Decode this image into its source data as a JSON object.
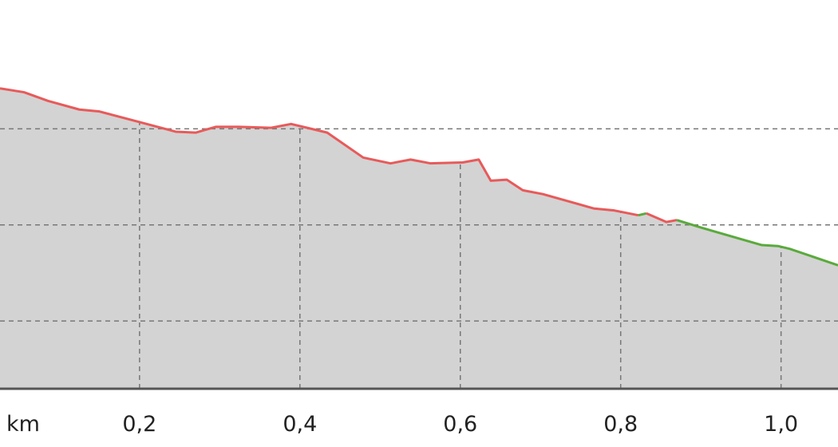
{
  "chart_data": {
    "type": "area",
    "xlabel": "km",
    "ylabel": "",
    "title": "",
    "xlim": [
      0.026,
      1.071
    ],
    "ylim": [
      0.295,
      4.34
    ],
    "grid": true,
    "x_ticks": [
      {
        "value": 0.2,
        "label": "0,2"
      },
      {
        "value": 0.4,
        "label": "0,4"
      },
      {
        "value": 0.6,
        "label": "0,6"
      },
      {
        "value": 0.8,
        "label": "0,8"
      },
      {
        "value": 1.0,
        "label": "1,0"
      }
    ],
    "y_gridlines": [
      1,
      2,
      3
    ],
    "series": [
      {
        "x": [
          0.026,
          0.056,
          0.086,
          0.125,
          0.15,
          0.2,
          0.245,
          0.27,
          0.295,
          0.324,
          0.364,
          0.389,
          0.434,
          0.479,
          0.513,
          0.538,
          0.563,
          0.603,
          0.623,
          0.638,
          0.658,
          0.678,
          0.703,
          0.767,
          0.792,
          0.822,
          0.832,
          0.857,
          0.87,
          0.901,
          0.976,
          0.996,
          1.011,
          1.071
        ],
        "y": [
          3.42,
          3.38,
          3.29,
          3.2,
          3.18,
          3.07,
          2.97,
          2.96,
          3.02,
          3.02,
          3.01,
          3.05,
          2.96,
          2.7,
          2.64,
          2.68,
          2.64,
          2.65,
          2.68,
          2.46,
          2.47,
          2.36,
          2.32,
          2.17,
          2.15,
          2.1,
          2.12,
          2.03,
          2.05,
          1.97,
          1.79,
          1.78,
          1.75,
          1.58
        ]
      }
    ],
    "segments": [
      {
        "from": 0.026,
        "to": 0.822,
        "color": "#e85a5a"
      },
      {
        "from": 0.822,
        "to": 0.832,
        "color": "#5aaa3c"
      },
      {
        "from": 0.832,
        "to": 0.87,
        "color": "#e85a5a"
      },
      {
        "from": 0.87,
        "to": 1.071,
        "color": "#5aaa3c"
      }
    ],
    "colors": {
      "fill": "#d3d3d3",
      "grid": "#777777",
      "axis": "#555555"
    }
  }
}
